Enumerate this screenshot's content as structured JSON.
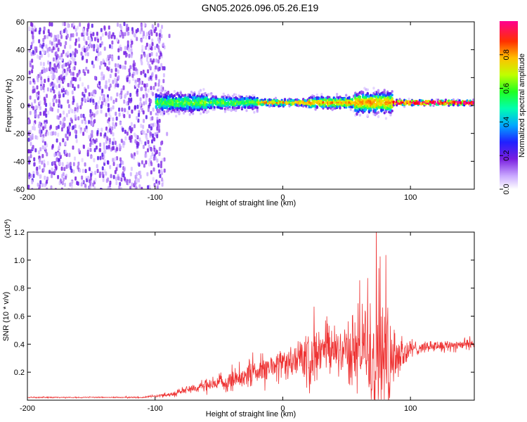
{
  "figure": {
    "title": "GN05.2026.096.05.26.E19"
  },
  "chart_data": [
    {
      "type": "heatmap",
      "xlabel": "Height of straight line (km)",
      "ylabel": "Frequency (Hz)",
      "xlim": [
        -200,
        150
      ],
      "ylim": [
        -60,
        60
      ],
      "xticks": [
        -200,
        -100,
        0,
        100
      ],
      "yticks": [
        -60,
        -40,
        -20,
        0,
        20,
        40,
        60
      ],
      "colorbar": {
        "label": "Normalized spectral amplitude",
        "range": [
          0,
          1
        ],
        "ticks": [
          "0.0",
          "0.2",
          "0.4",
          "0.6",
          "0.8"
        ],
        "colormap": [
          "#ffffff",
          "#c9a8ff",
          "#7a1fe0",
          "#2020ff",
          "#00c8ff",
          "#00ff60",
          "#a0ff00",
          "#ffe000",
          "#ff6000",
          "#ff0000",
          "#ff00a0"
        ]
      },
      "regions": [
        {
          "x_range": [
            -200,
            -93
          ],
          "freq_range": [
            -60,
            60
          ],
          "amplitude": "scattered low (0.1-0.3)"
        },
        {
          "x_range": [
            -100,
            150
          ],
          "freq_center": 2,
          "band_halfwidth_hz": [
            4,
            12
          ],
          "peak_amplitude": 1.0
        }
      ],
      "grid": false
    },
    {
      "type": "line",
      "xlabel": "Height of straight line (km)",
      "ylabel": "SNR (10 * v/v)",
      "y_multiplier": "(x10^4)",
      "xlim": [
        -200,
        150
      ],
      "ylim": [
        0,
        1.2
      ],
      "xticks": [
        -200,
        -100,
        0,
        100
      ],
      "yticks": [
        "0.2",
        "0.4",
        "0.6",
        "0.8",
        "1.0",
        "1.2"
      ],
      "series": [
        {
          "color": "#ee3333",
          "envelope": {
            "x": [
              -200,
              -130,
              -110,
              -100,
              -90,
              -80,
              -70,
              -60,
              -50,
              -40,
              -30,
              -25,
              -20,
              -10,
              0,
              10,
              15,
              20,
              25,
              30,
              40,
              50,
              55,
              60,
              65,
              70,
              75,
              80,
              85,
              90,
              95,
              100,
              105,
              110,
              120,
              130,
              140,
              150
            ],
            "center": [
              0.02,
              0.02,
              0.02,
              0.03,
              0.04,
              0.06,
              0.09,
              0.1,
              0.12,
              0.14,
              0.18,
              0.2,
              0.2,
              0.24,
              0.27,
              0.29,
              0.3,
              0.33,
              0.34,
              0.34,
              0.35,
              0.36,
              0.36,
              0.36,
              0.38,
              0.38,
              0.38,
              0.36,
              0.33,
              0.33,
              0.34,
              0.36,
              0.37,
              0.38,
              0.39,
              0.39,
              0.4,
              0.4
            ],
            "noise": [
              0.005,
              0.005,
              0.006,
              0.01,
              0.02,
              0.03,
              0.05,
              0.06,
              0.07,
              0.1,
              0.1,
              0.14,
              0.12,
              0.14,
              0.13,
              0.15,
              0.2,
              0.28,
              0.28,
              0.22,
              0.22,
              0.25,
              0.3,
              0.4,
              0.5,
              0.8,
              0.8,
              0.55,
              0.4,
              0.3,
              0.2,
              0.08,
              0.06,
              0.05,
              0.05,
              0.05,
              0.05,
              0.05
            ]
          }
        }
      ],
      "grid": false
    }
  ]
}
